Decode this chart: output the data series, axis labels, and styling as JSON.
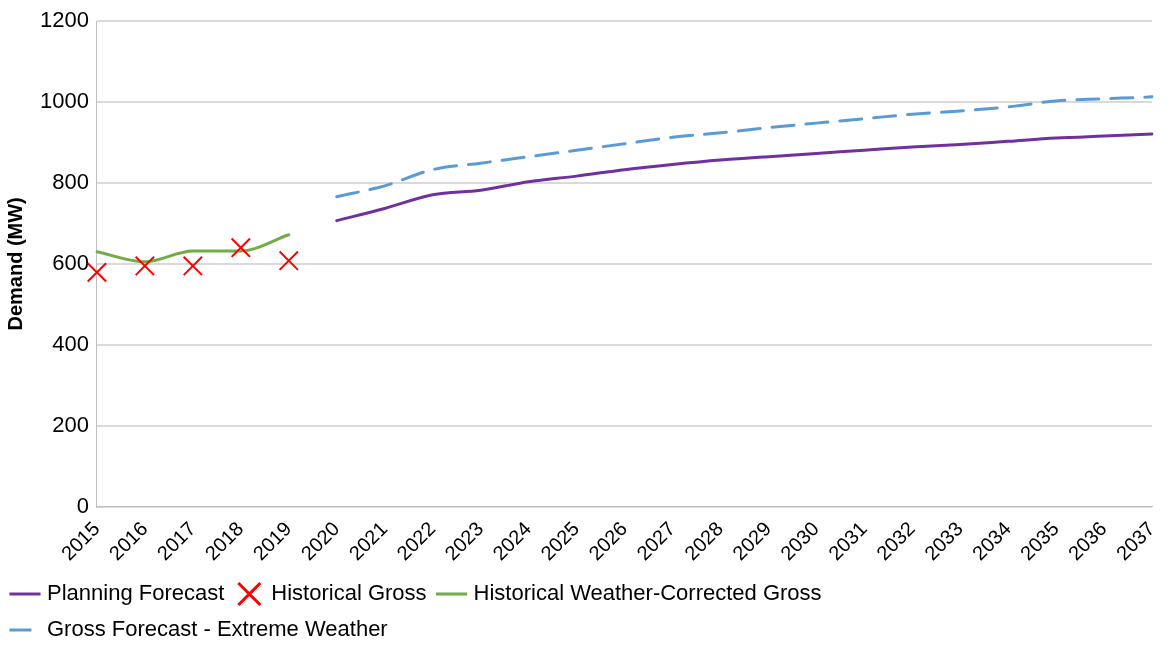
{
  "chart_data": {
    "type": "line",
    "ylabel": "Demand (MW)",
    "categories": [
      "2015",
      "2016",
      "2017",
      "2018",
      "2019",
      "2020",
      "2021",
      "2022",
      "2023",
      "2024",
      "2025",
      "2026",
      "2027",
      "2028",
      "2029",
      "2030",
      "2031",
      "2032",
      "2033",
      "2034",
      "2035",
      "2036",
      "2037"
    ],
    "series": [
      {
        "name": "Planning Forecast",
        "color": "#7030a0",
        "line_style": "solid",
        "values": [
          null,
          null,
          null,
          null,
          null,
          707,
          737,
          771,
          782,
          803,
          817,
          833,
          846,
          857,
          865,
          873,
          881,
          889,
          895,
          903,
          911,
          916,
          921
        ]
      },
      {
        "name": "Historical Gross",
        "type": "scatter",
        "marker": "cross",
        "color": "#ff0000",
        "values": [
          579,
          595,
          595,
          640,
          608,
          null,
          null,
          null,
          null,
          null,
          null,
          null,
          null,
          null,
          null,
          null,
          null,
          null,
          null,
          null,
          null,
          null,
          null
        ]
      },
      {
        "name": "Historical Weather-Corrected Gross",
        "color": "#70ad47",
        "line_style": "solid",
        "values": [
          630,
          605,
          632,
          632,
          672,
          null,
          null,
          null,
          null,
          null,
          null,
          null,
          null,
          null,
          null,
          null,
          null,
          null,
          null,
          null,
          null,
          null,
          null
        ]
      },
      {
        "name": "Gross Forecast - Extreme Weather",
        "color": "#5b9bd5",
        "line_style": "dashed",
        "values": [
          null,
          null,
          null,
          null,
          null,
          766,
          793,
          833,
          849,
          865,
          881,
          897,
          913,
          924,
          937,
          948,
          959,
          970,
          978,
          988,
          1003,
          1008,
          1013
        ]
      }
    ],
    "ylim": [
      0,
      1200
    ],
    "yticks": [
      0,
      200,
      400,
      600,
      800,
      1000,
      1200
    ],
    "grid": "y",
    "legend": "bottom",
    "marker": "none"
  }
}
